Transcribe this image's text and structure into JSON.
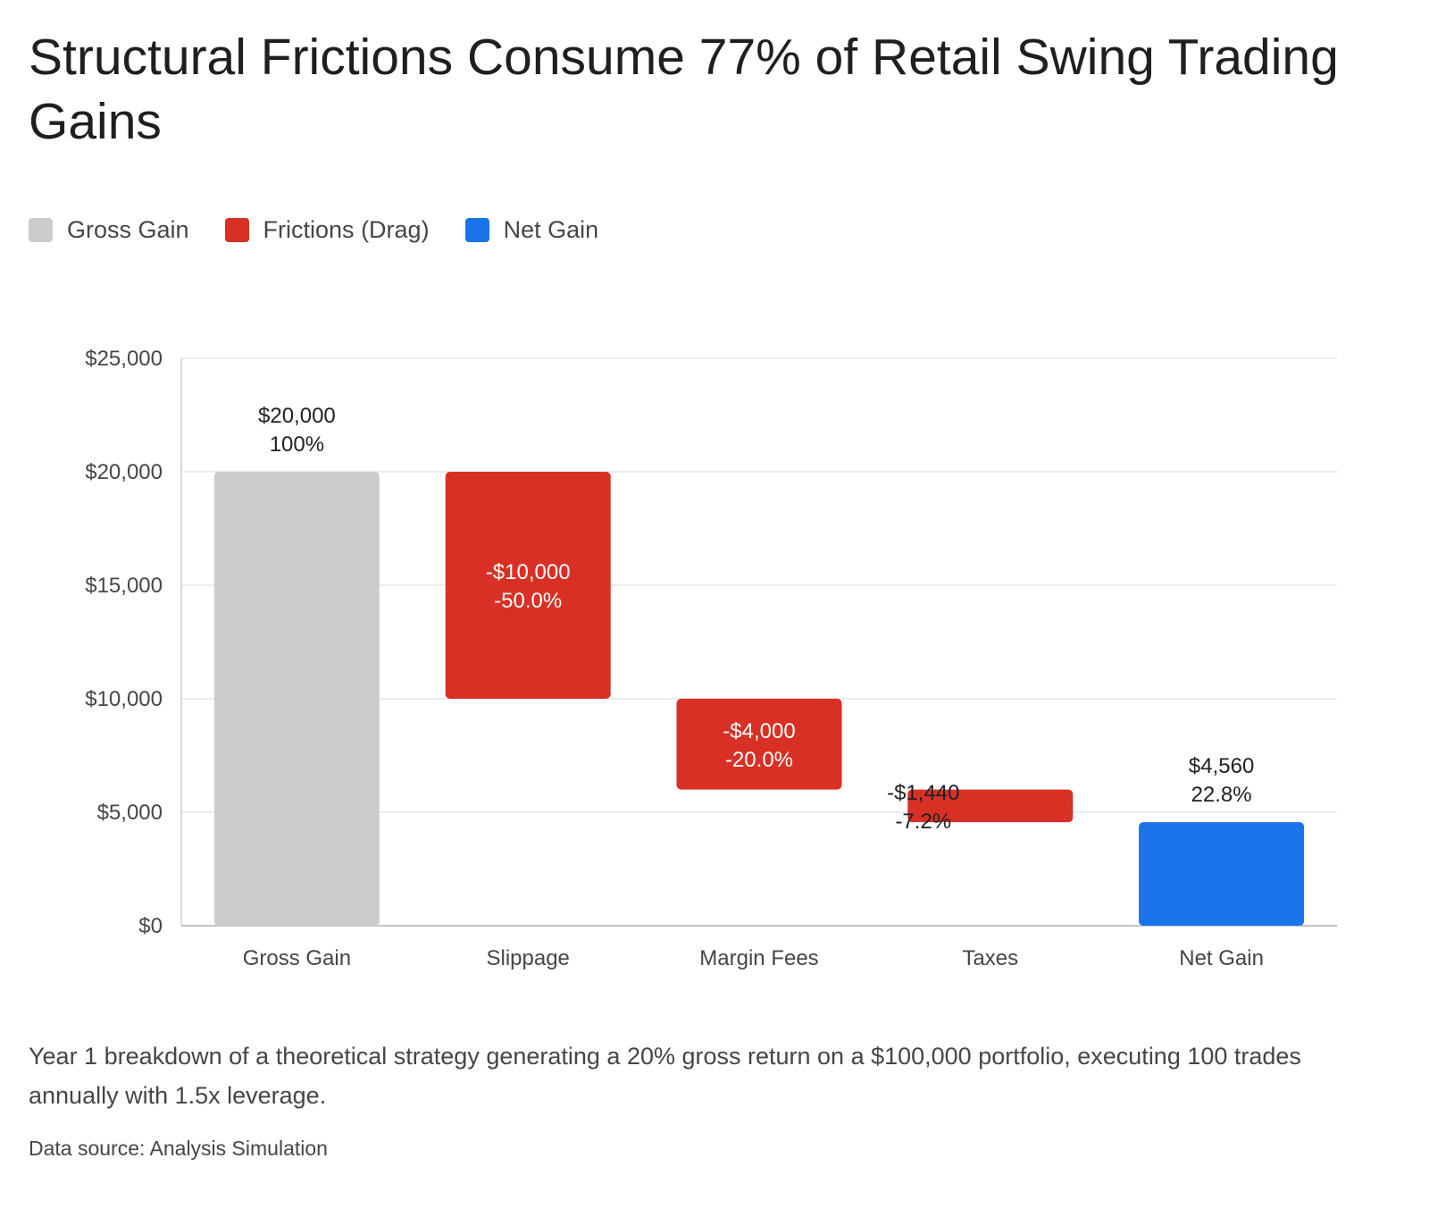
{
  "title": "Structural Frictions Consume 77% of Retail Swing Trading Gains",
  "legend": [
    {
      "label": "Gross Gain",
      "color": "#cccccc"
    },
    {
      "label": "Frictions (Drag)",
      "color": "#d93025"
    },
    {
      "label": "Net Gain",
      "color": "#1a73e8"
    }
  ],
  "caption": "Year 1 breakdown of a theoretical strategy generating a 20% gross return on a $100,000 portfolio, executing 100 trades annually with 1.5x leverage.",
  "source": "Data source: Analysis Simulation",
  "chart_data": {
    "type": "bar",
    "subtype": "waterfall",
    "categories": [
      "Gross Gain",
      "Slippage",
      "Margin Fees",
      "Taxes",
      "Net Gain"
    ],
    "values": [
      20000,
      -10000,
      -4000,
      -1440,
      4560
    ],
    "base": [
      0,
      10000,
      6000,
      4560,
      0
    ],
    "top": [
      20000,
      20000,
      10000,
      6000,
      4560
    ],
    "kind": [
      "gross",
      "friction",
      "friction",
      "friction",
      "net"
    ],
    "value_labels": [
      "$20,000",
      "-$10,000",
      "-$4,000",
      "-$1,440",
      "$4,560"
    ],
    "pct_labels": [
      "100%",
      "-50.0%",
      "-20.0%",
      "-7.2%",
      "22.8%"
    ],
    "ylim": [
      0,
      25000
    ],
    "yticks": [
      0,
      5000,
      10000,
      15000,
      20000,
      25000
    ],
    "ytick_labels": [
      "$0",
      "$5,000",
      "$10,000",
      "$15,000",
      "$20,000",
      "$25,000"
    ],
    "colors": {
      "gross": "#cccccc",
      "friction": "#d93025",
      "net": "#1a73e8"
    },
    "grid": true,
    "legend_position": "top-left"
  }
}
